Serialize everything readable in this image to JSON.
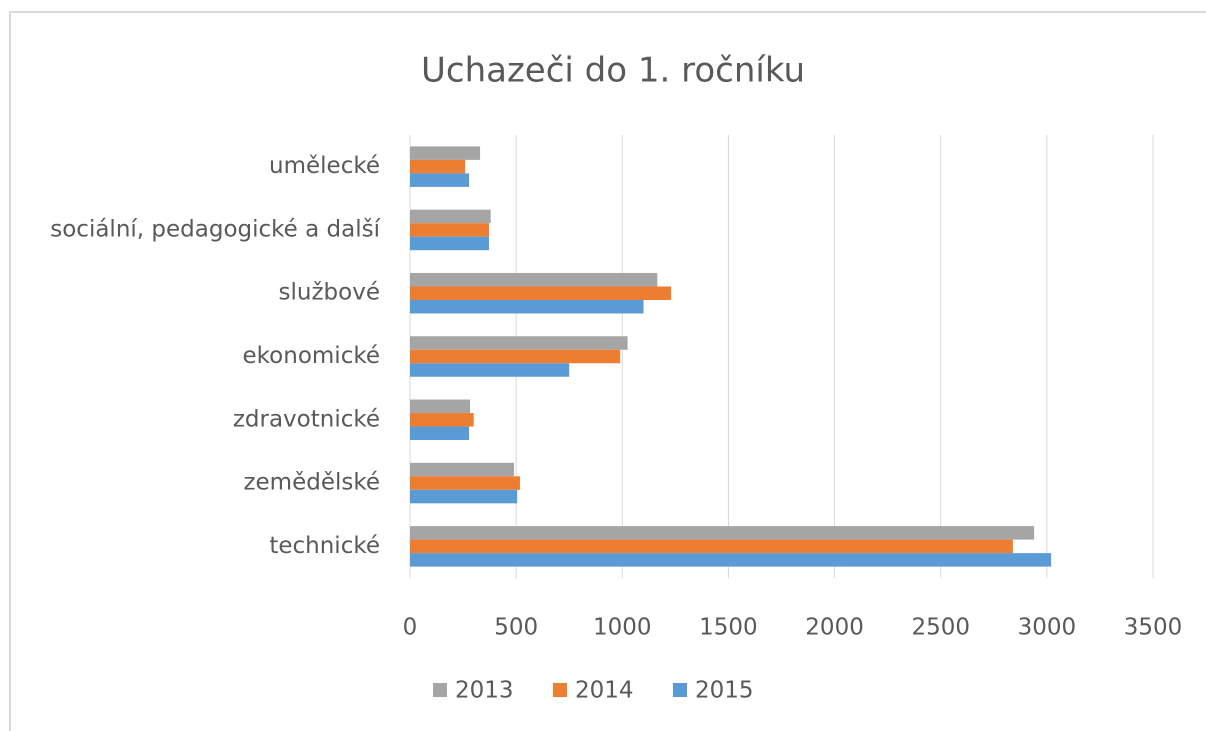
{
  "chart_data": {
    "type": "hbar",
    "title": "Uchazeči  do 1. ročníku",
    "categories": [
      "umělecké",
      "sociální, pedagogické a další",
      "službové",
      "ekonomické",
      "zdravotnické",
      "zemědělské",
      "technické"
    ],
    "series": [
      {
        "name": "2013",
        "color": "#a5a5a5",
        "values": [
          330,
          380,
          1165,
          1025,
          283,
          490,
          2940
        ]
      },
      {
        "name": "2014",
        "color": "#ed7d31",
        "values": [
          260,
          372,
          1230,
          990,
          300,
          518,
          2840
        ]
      },
      {
        "name": "2015",
        "color": "#5b9bd5",
        "values": [
          278,
          372,
          1100,
          750,
          278,
          505,
          3020
        ]
      }
    ],
    "xlim": [
      0,
      3500
    ],
    "xticks": [
      0,
      500,
      1000,
      1500,
      2000,
      2500,
      3000,
      3500
    ],
    "grid": true,
    "legend": "bottom"
  }
}
